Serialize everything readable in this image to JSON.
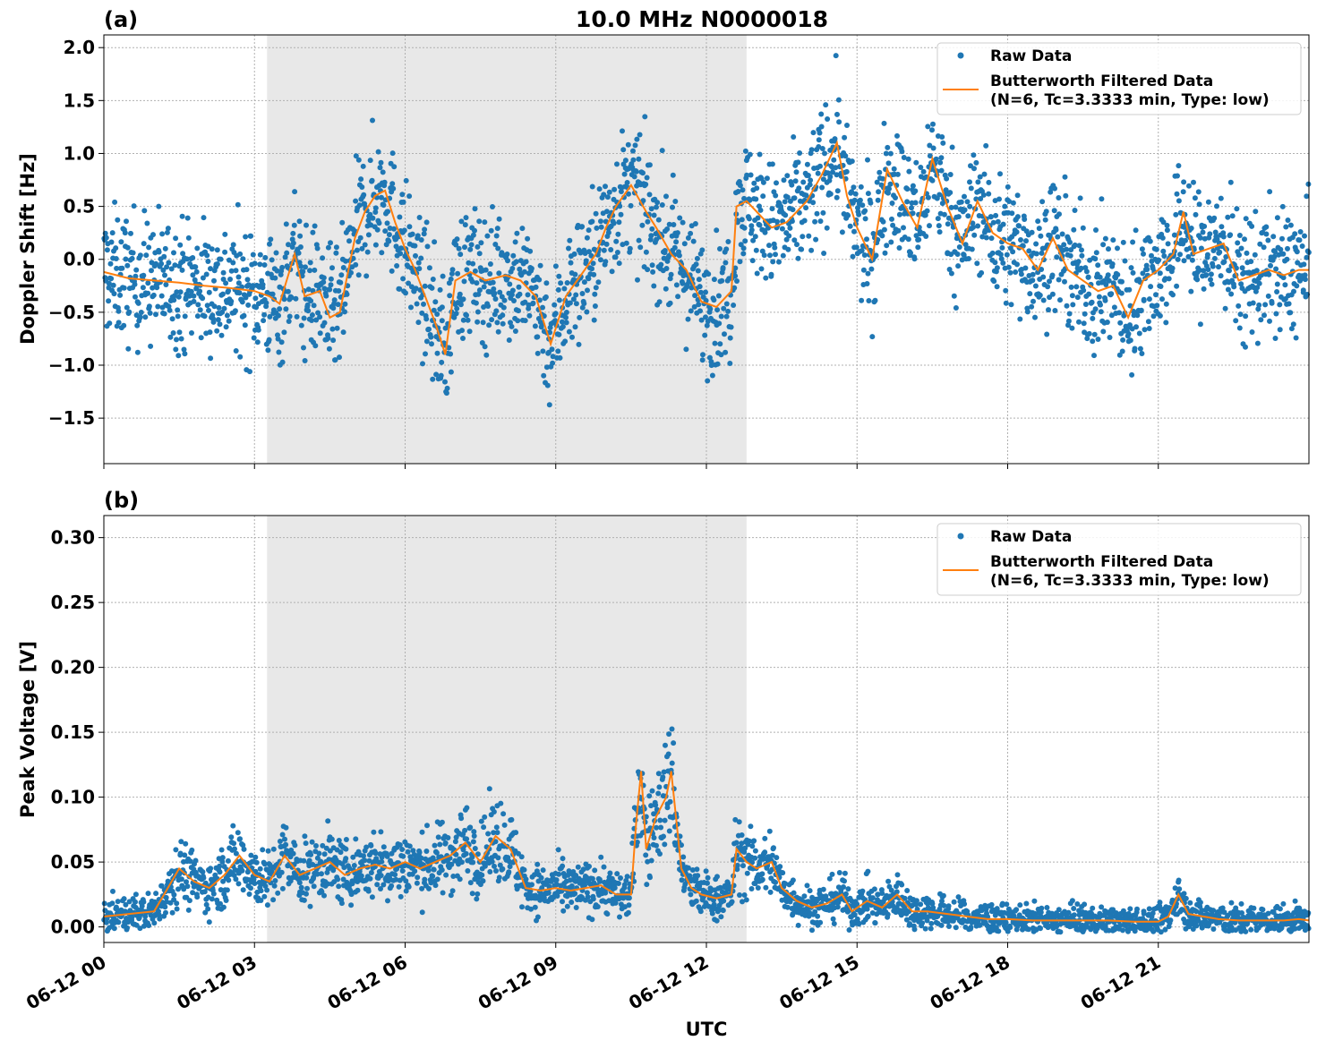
{
  "title": "10.0 MHz N0000018",
  "xlabel": "UTC",
  "x_tick_labels": [
    "06-12 00",
    "06-12 03",
    "06-12 06",
    "06-12 09",
    "06-12 12",
    "06-12 15",
    "06-12 18",
    "06-12 21"
  ],
  "shaded_interval_hours": [
    3.25,
    12.8
  ],
  "colors": {
    "raw": "#1f77b4",
    "filtered": "#ff7f0e",
    "shade": "#e8e8e8",
    "grid": "#b0b0b0"
  },
  "legend": {
    "raw": "Raw Data",
    "filtered_line1": "Butterworth Filtered Data",
    "filtered_line2": "(N=6, Tc=3.3333 min, Type: low)"
  },
  "chart_data": [
    {
      "type": "scatter",
      "panel_label": "(a)",
      "ylabel": "Doppler Shift [Hz]",
      "xlim": [
        0,
        24
      ],
      "ylim": [
        -1.93,
        2.12
      ],
      "y_ticks": [
        2.0,
        1.5,
        1.0,
        0.5,
        0.0,
        -0.5,
        -1.0,
        -1.5
      ],
      "y_tick_labels": [
        "2.0",
        "1.5",
        "1.0",
        "0.5",
        "0.0",
        "−0.5",
        "−1.0",
        "−1.5"
      ],
      "legend_position": "upper-right",
      "series": [
        {
          "name": "Raw Data",
          "kind": "scatter",
          "spread_hz": 0.3
        },
        {
          "name": "Butterworth Filtered Data",
          "kind": "line",
          "x": [
            0,
            0.5,
            1.0,
            1.5,
            2.0,
            2.5,
            3.0,
            3.3,
            3.5,
            3.8,
            4.0,
            4.3,
            4.5,
            4.7,
            5.0,
            5.2,
            5.4,
            5.6,
            5.8,
            6.0,
            6.2,
            6.4,
            6.6,
            6.8,
            7.0,
            7.3,
            7.6,
            8.0,
            8.3,
            8.6,
            8.9,
            9.2,
            9.5,
            9.8,
            10.0,
            10.2,
            10.5,
            10.8,
            11.0,
            11.3,
            11.6,
            11.9,
            12.2,
            12.5,
            12.6,
            12.8,
            13.0,
            13.3,
            13.6,
            14.0,
            14.3,
            14.6,
            14.8,
            15.0,
            15.3,
            15.6,
            15.9,
            16.2,
            16.5,
            16.8,
            17.1,
            17.4,
            17.7,
            18.0,
            18.3,
            18.6,
            18.9,
            19.2,
            19.5,
            19.8,
            20.1,
            20.4,
            20.7,
            21.0,
            21.3,
            21.5,
            21.7,
            22.0,
            22.3,
            22.6,
            22.9,
            23.2,
            23.5,
            23.8,
            24.0
          ],
          "y": [
            -0.12,
            -0.18,
            -0.2,
            -0.22,
            -0.25,
            -0.27,
            -0.3,
            -0.35,
            -0.42,
            0.05,
            -0.35,
            -0.3,
            -0.55,
            -0.5,
            0.2,
            0.45,
            0.6,
            0.65,
            0.35,
            0.1,
            -0.1,
            -0.35,
            -0.6,
            -0.9,
            -0.2,
            -0.12,
            -0.2,
            -0.15,
            -0.2,
            -0.35,
            -0.8,
            -0.35,
            -0.15,
            0.05,
            0.3,
            0.5,
            0.7,
            0.45,
            0.3,
            0.05,
            -0.1,
            -0.4,
            -0.45,
            -0.3,
            0.5,
            0.55,
            0.45,
            0.3,
            0.35,
            0.55,
            0.8,
            1.1,
            0.6,
            0.3,
            0.0,
            0.85,
            0.55,
            0.3,
            0.95,
            0.5,
            0.15,
            0.55,
            0.25,
            0.15,
            0.1,
            -0.1,
            0.2,
            -0.1,
            -0.2,
            -0.3,
            -0.25,
            -0.55,
            -0.2,
            -0.1,
            0.05,
            0.45,
            0.05,
            0.1,
            0.15,
            -0.2,
            -0.15,
            -0.1,
            -0.15,
            -0.1,
            -0.1
          ]
        }
      ]
    },
    {
      "type": "scatter",
      "panel_label": "(b)",
      "ylabel": "Peak Voltage [V]",
      "xlim": [
        0,
        24
      ],
      "ylim": [
        -0.012,
        0.317
      ],
      "y_ticks": [
        0.3,
        0.25,
        0.2,
        0.15,
        0.1,
        0.05,
        0.0
      ],
      "y_tick_labels": [
        "0.30",
        "0.25",
        "0.20",
        "0.15",
        "0.10",
        "0.05",
        "0.00"
      ],
      "legend_position": "upper-right",
      "series": [
        {
          "name": "Raw Data",
          "kind": "scatter",
          "spread_v": 0.012
        },
        {
          "name": "Butterworth Filtered Data",
          "kind": "line",
          "x": [
            0,
            0.5,
            1.0,
            1.2,
            1.5,
            1.8,
            2.1,
            2.4,
            2.7,
            3.0,
            3.3,
            3.6,
            3.9,
            4.2,
            4.5,
            4.8,
            5.1,
            5.4,
            5.7,
            6.0,
            6.3,
            6.6,
            6.9,
            7.2,
            7.5,
            7.8,
            8.1,
            8.4,
            8.7,
            9.0,
            9.3,
            9.6,
            9.9,
            10.2,
            10.5,
            10.6,
            10.7,
            10.8,
            11.0,
            11.2,
            11.3,
            11.5,
            11.7,
            11.9,
            12.2,
            12.5,
            12.6,
            12.8,
            13.0,
            13.3,
            13.5,
            13.8,
            14.1,
            14.4,
            14.7,
            14.9,
            15.2,
            15.5,
            15.8,
            16.1,
            16.4,
            16.8,
            17.2,
            17.6,
            18.0,
            18.5,
            19.0,
            19.5,
            20.0,
            20.5,
            21.0,
            21.2,
            21.4,
            21.6,
            21.9,
            22.2,
            22.6,
            23.0,
            23.5,
            23.8,
            24.0
          ],
          "y": [
            0.008,
            0.01,
            0.012,
            0.025,
            0.045,
            0.035,
            0.03,
            0.04,
            0.055,
            0.04,
            0.035,
            0.055,
            0.04,
            0.045,
            0.05,
            0.04,
            0.045,
            0.048,
            0.045,
            0.05,
            0.045,
            0.05,
            0.055,
            0.065,
            0.05,
            0.07,
            0.06,
            0.03,
            0.028,
            0.03,
            0.028,
            0.03,
            0.032,
            0.025,
            0.025,
            0.08,
            0.12,
            0.06,
            0.085,
            0.1,
            0.12,
            0.045,
            0.03,
            0.025,
            0.022,
            0.025,
            0.06,
            0.05,
            0.045,
            0.05,
            0.03,
            0.02,
            0.015,
            0.018,
            0.025,
            0.012,
            0.02,
            0.015,
            0.025,
            0.012,
            0.012,
            0.01,
            0.008,
            0.006,
            0.006,
            0.005,
            0.005,
            0.005,
            0.005,
            0.004,
            0.004,
            0.008,
            0.025,
            0.01,
            0.008,
            0.006,
            0.005,
            0.005,
            0.005,
            0.006,
            0.005
          ]
        }
      ]
    }
  ]
}
